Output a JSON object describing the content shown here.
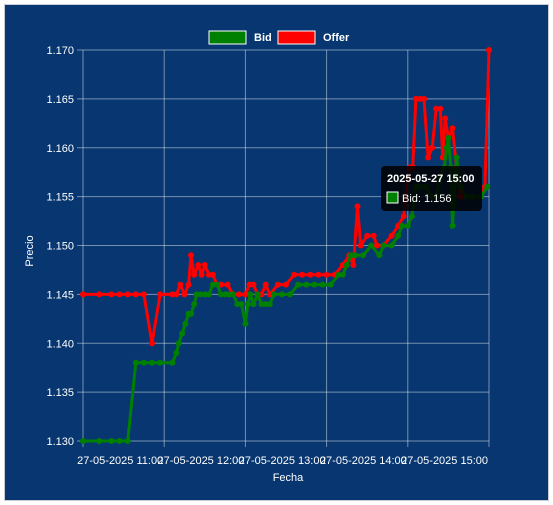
{
  "chart_data": {
    "type": "line",
    "xlabel": "Fecha",
    "ylabel": "Precio",
    "ylim": [
      1.13,
      1.17
    ],
    "yticks": [
      "1.170",
      "1.165",
      "1.160",
      "1.155",
      "1.150",
      "1.145",
      "1.140",
      "1.135",
      "1.130"
    ],
    "xticks": [
      "27-05-2025 11:00",
      "27-05-2025 12:00",
      "27-05-2025 13:00",
      "27-05-2025 14:00",
      "27-05-2025 15:00"
    ],
    "xrange_hours": [
      10.0,
      15.0
    ],
    "grid": true,
    "legend_position": "top",
    "series": [
      {
        "name": "Bid",
        "color": "#008000",
        "points": [
          [
            10.0,
            1.13
          ],
          [
            10.2,
            1.13
          ],
          [
            10.35,
            1.13
          ],
          [
            10.45,
            1.13
          ],
          [
            10.55,
            1.13
          ],
          [
            10.65,
            1.138
          ],
          [
            10.75,
            1.138
          ],
          [
            10.85,
            1.138
          ],
          [
            10.95,
            1.138
          ],
          [
            11.1,
            1.138
          ],
          [
            11.15,
            1.139
          ],
          [
            11.18,
            1.14
          ],
          [
            11.22,
            1.141
          ],
          [
            11.26,
            1.142
          ],
          [
            11.3,
            1.143
          ],
          [
            11.33,
            1.143
          ],
          [
            11.37,
            1.144
          ],
          [
            11.4,
            1.145
          ],
          [
            11.45,
            1.145
          ],
          [
            11.5,
            1.145
          ],
          [
            11.55,
            1.145
          ],
          [
            11.6,
            1.146
          ],
          [
            11.65,
            1.146
          ],
          [
            11.7,
            1.145
          ],
          [
            11.75,
            1.145
          ],
          [
            11.8,
            1.145
          ],
          [
            11.85,
            1.145
          ],
          [
            11.9,
            1.144
          ],
          [
            11.95,
            1.144
          ],
          [
            12.0,
            1.142
          ],
          [
            12.03,
            1.144
          ],
          [
            12.06,
            1.145
          ],
          [
            12.1,
            1.144
          ],
          [
            12.15,
            1.145
          ],
          [
            12.2,
            1.144
          ],
          [
            12.25,
            1.144
          ],
          [
            12.3,
            1.144
          ],
          [
            12.35,
            1.145
          ],
          [
            12.45,
            1.145
          ],
          [
            12.55,
            1.145
          ],
          [
            12.65,
            1.146
          ],
          [
            12.75,
            1.146
          ],
          [
            12.85,
            1.146
          ],
          [
            12.95,
            1.146
          ],
          [
            13.05,
            1.146
          ],
          [
            13.15,
            1.147
          ],
          [
            13.2,
            1.147
          ],
          [
            13.25,
            1.148
          ],
          [
            13.3,
            1.149
          ],
          [
            13.35,
            1.149
          ],
          [
            13.45,
            1.149
          ],
          [
            13.55,
            1.15
          ],
          [
            13.65,
            1.149
          ],
          [
            13.7,
            1.15
          ],
          [
            13.8,
            1.15
          ],
          [
            13.88,
            1.151
          ],
          [
            13.93,
            1.152
          ],
          [
            14.0,
            1.152
          ],
          [
            14.05,
            1.153
          ],
          [
            14.1,
            1.156
          ],
          [
            14.15,
            1.156
          ],
          [
            14.22,
            1.156
          ],
          [
            14.3,
            1.155
          ],
          [
            14.35,
            1.155
          ],
          [
            14.4,
            1.157
          ],
          [
            14.45,
            1.158
          ],
          [
            14.48,
            1.16
          ],
          [
            14.5,
            1.161
          ],
          [
            14.53,
            1.158
          ],
          [
            14.55,
            1.152
          ],
          [
            14.6,
            1.159
          ],
          [
            14.65,
            1.156
          ],
          [
            14.72,
            1.155
          ],
          [
            14.8,
            1.155
          ],
          [
            14.9,
            1.155
          ],
          [
            14.98,
            1.156
          ]
        ]
      },
      {
        "name": "Offer",
        "color": "#ff0000",
        "points": [
          [
            10.0,
            1.145
          ],
          [
            10.2,
            1.145
          ],
          [
            10.35,
            1.145
          ],
          [
            10.45,
            1.145
          ],
          [
            10.55,
            1.145
          ],
          [
            10.65,
            1.145
          ],
          [
            10.75,
            1.145
          ],
          [
            10.85,
            1.14
          ],
          [
            10.95,
            1.145
          ],
          [
            11.1,
            1.145
          ],
          [
            11.15,
            1.145
          ],
          [
            11.2,
            1.146
          ],
          [
            11.25,
            1.145
          ],
          [
            11.3,
            1.146
          ],
          [
            11.33,
            1.149
          ],
          [
            11.37,
            1.147
          ],
          [
            11.42,
            1.148
          ],
          [
            11.46,
            1.147
          ],
          [
            11.5,
            1.148
          ],
          [
            11.55,
            1.147
          ],
          [
            11.6,
            1.147
          ],
          [
            11.65,
            1.146
          ],
          [
            11.7,
            1.146
          ],
          [
            11.78,
            1.146
          ],
          [
            11.85,
            1.145
          ],
          [
            11.92,
            1.145
          ],
          [
            12.0,
            1.145
          ],
          [
            12.05,
            1.146
          ],
          [
            12.1,
            1.146
          ],
          [
            12.15,
            1.145
          ],
          [
            12.2,
            1.145
          ],
          [
            12.25,
            1.146
          ],
          [
            12.3,
            1.145
          ],
          [
            12.4,
            1.146
          ],
          [
            12.5,
            1.146
          ],
          [
            12.6,
            1.147
          ],
          [
            12.7,
            1.147
          ],
          [
            12.8,
            1.147
          ],
          [
            12.9,
            1.147
          ],
          [
            13.0,
            1.147
          ],
          [
            13.1,
            1.147
          ],
          [
            13.2,
            1.148
          ],
          [
            13.28,
            1.149
          ],
          [
            13.33,
            1.148
          ],
          [
            13.38,
            1.154
          ],
          [
            13.42,
            1.15
          ],
          [
            13.5,
            1.151
          ],
          [
            13.58,
            1.151
          ],
          [
            13.62,
            1.15
          ],
          [
            13.7,
            1.15
          ],
          [
            13.8,
            1.151
          ],
          [
            13.88,
            1.152
          ],
          [
            13.95,
            1.153
          ],
          [
            14.0,
            1.157
          ],
          [
            14.03,
            1.158
          ],
          [
            14.06,
            1.158
          ],
          [
            14.1,
            1.165
          ],
          [
            14.15,
            1.165
          ],
          [
            14.2,
            1.165
          ],
          [
            14.25,
            1.159
          ],
          [
            14.3,
            1.16
          ],
          [
            14.35,
            1.164
          ],
          [
            14.4,
            1.164
          ],
          [
            14.43,
            1.159
          ],
          [
            14.46,
            1.163
          ],
          [
            14.5,
            1.161
          ],
          [
            14.55,
            1.162
          ],
          [
            14.6,
            1.158
          ],
          [
            14.65,
            1.155
          ],
          [
            14.8,
            1.155
          ],
          [
            14.9,
            1.155
          ],
          [
            14.95,
            1.156
          ],
          [
            15.0,
            1.17
          ]
        ]
      }
    ]
  },
  "tooltip": {
    "title": "2025-05-27 15:00",
    "body": "Bid: 1.156"
  }
}
